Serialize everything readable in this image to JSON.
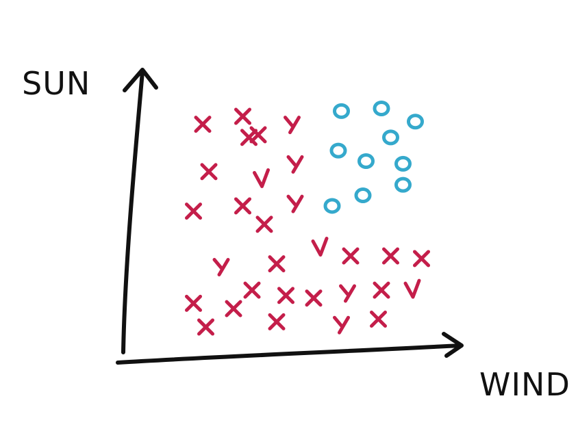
{
  "colors": {
    "ink": "#111111",
    "x_mark": "#c41e4a",
    "o_mark": "#35a9cc"
  },
  "chart_data": {
    "type": "scatter",
    "xlabel": "WIND",
    "ylabel": "SUN",
    "grid": false,
    "xlim": [
      0,
      10
    ],
    "ylim": [
      0,
      10
    ],
    "series": [
      {
        "marker": "x",
        "color": "#c41e4a",
        "points": [
          {
            "x": 1.8,
            "y": 8.4,
            "glyph": "x"
          },
          {
            "x": 3.1,
            "y": 8.7,
            "glyph": "x"
          },
          {
            "x": 3.3,
            "y": 7.9,
            "glyph": "x"
          },
          {
            "x": 3.6,
            "y": 8.0,
            "glyph": "x"
          },
          {
            "x": 4.7,
            "y": 8.4,
            "glyph": "y"
          },
          {
            "x": 2.0,
            "y": 6.6,
            "glyph": "x"
          },
          {
            "x": 3.7,
            "y": 6.3,
            "glyph": "v"
          },
          {
            "x": 4.8,
            "y": 6.9,
            "glyph": "y"
          },
          {
            "x": 1.5,
            "y": 5.1,
            "glyph": "x"
          },
          {
            "x": 3.1,
            "y": 5.3,
            "glyph": "x"
          },
          {
            "x": 3.8,
            "y": 4.6,
            "glyph": "x"
          },
          {
            "x": 4.8,
            "y": 5.4,
            "glyph": "y"
          },
          {
            "x": 5.6,
            "y": 3.7,
            "glyph": "v"
          },
          {
            "x": 6.6,
            "y": 3.4,
            "glyph": "x"
          },
          {
            "x": 7.9,
            "y": 3.4,
            "glyph": "x"
          },
          {
            "x": 8.9,
            "y": 3.3,
            "glyph": "x"
          },
          {
            "x": 2.4,
            "y": 3.0,
            "glyph": "y"
          },
          {
            "x": 4.2,
            "y": 3.1,
            "glyph": "x"
          },
          {
            "x": 1.5,
            "y": 1.6,
            "glyph": "x"
          },
          {
            "x": 2.8,
            "y": 1.4,
            "glyph": "x"
          },
          {
            "x": 3.4,
            "y": 2.1,
            "glyph": "x"
          },
          {
            "x": 4.5,
            "y": 1.9,
            "glyph": "x"
          },
          {
            "x": 5.4,
            "y": 1.8,
            "glyph": "x"
          },
          {
            "x": 6.5,
            "y": 2.0,
            "glyph": "y"
          },
          {
            "x": 7.6,
            "y": 2.1,
            "glyph": "x"
          },
          {
            "x": 8.6,
            "y": 2.1,
            "glyph": "v"
          },
          {
            "x": 1.9,
            "y": 0.7,
            "glyph": "x"
          },
          {
            "x": 4.2,
            "y": 0.9,
            "glyph": "x"
          },
          {
            "x": 6.3,
            "y": 0.8,
            "glyph": "y"
          },
          {
            "x": 7.5,
            "y": 1.0,
            "glyph": "x"
          }
        ]
      },
      {
        "marker": "o",
        "color": "#35a9cc",
        "points": [
          {
            "x": 6.3,
            "y": 8.9
          },
          {
            "x": 7.6,
            "y": 9.0
          },
          {
            "x": 8.7,
            "y": 8.5
          },
          {
            "x": 7.9,
            "y": 7.9
          },
          {
            "x": 6.2,
            "y": 7.4
          },
          {
            "x": 7.1,
            "y": 7.0
          },
          {
            "x": 8.3,
            "y": 6.9
          },
          {
            "x": 8.3,
            "y": 6.1
          },
          {
            "x": 7.0,
            "y": 5.7
          },
          {
            "x": 6.0,
            "y": 5.3
          }
        ]
      }
    ]
  }
}
